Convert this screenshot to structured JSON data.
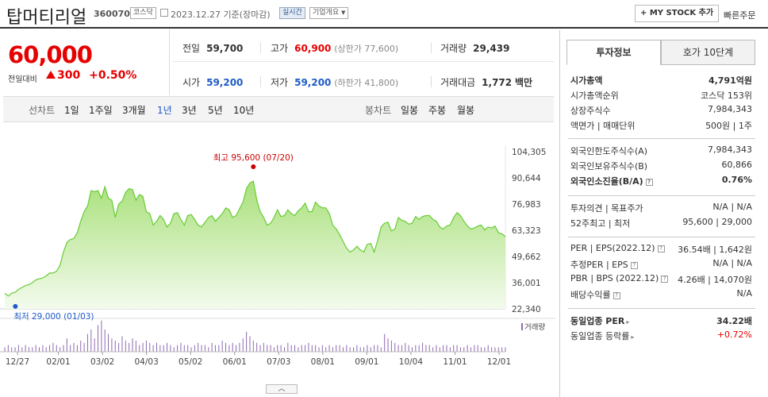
{
  "header": {
    "name": "탑머티리얼",
    "code": "360070",
    "market": "코스닥",
    "date": "2023.12.27 기준(장마감)",
    "realtime": "실시간",
    "company_info": "기업개요",
    "mystock": "+ MY STOCK 추가",
    "quick_order": "빠른주문"
  },
  "quote": {
    "price": "60,000",
    "change_label": "전일대비",
    "change": "300",
    "change_pct": "+0.50%",
    "prev_label": "전일",
    "prev": "59,700",
    "high_label": "고가",
    "high": "60,900",
    "upper": "(상한가 77,600)",
    "volume_label": "거래량",
    "volume": "29,439",
    "open_label": "시가",
    "open": "59,200",
    "low_label": "저가",
    "low": "59,200",
    "lower": "(하한가 41,800)",
    "amount_label": "거래대금",
    "amount": "1,772",
    "amount_unit": "백만"
  },
  "chart_tabs": {
    "line_label": "선차트",
    "line": [
      "1일",
      "1주일",
      "3개월",
      "1년",
      "3년",
      "5년",
      "10년"
    ],
    "active": "1년",
    "candle_label": "봉차트",
    "candle": [
      "일봉",
      "주봉",
      "월봉"
    ]
  },
  "chart_data": {
    "type": "area",
    "y_ticks": [
      "104,305",
      "90,644",
      "76,983",
      "63,323",
      "49,662",
      "36,001",
      "22,340"
    ],
    "ylim": [
      22340,
      104305
    ],
    "x_ticks": [
      "12/27",
      "02/01",
      "03/02",
      "04/03",
      "05/02",
      "06/01",
      "07/03",
      "08/01",
      "09/01",
      "10/04",
      "11/01",
      "12/01"
    ],
    "max_label": "최고 95,600 (07/20)",
    "min_label": "최저 29,000 (01/03)",
    "volume_label": "거래량",
    "values": [
      30500,
      29000,
      30500,
      31000,
      32500,
      33500,
      34500,
      35000,
      36000,
      37500,
      38000,
      38500,
      39500,
      41000,
      41000,
      42000,
      45000,
      52000,
      57000,
      58500,
      59000,
      62000,
      68000,
      73000,
      76000,
      84000,
      83500,
      84000,
      80000,
      86000,
      80000,
      79000,
      70000,
      77000,
      78500,
      83000,
      85000,
      84500,
      79000,
      82000,
      81000,
      73000,
      72000,
      66000,
      68000,
      71000,
      69000,
      65000,
      67000,
      72000,
      72500,
      69000,
      66000,
      71000,
      71500,
      69000,
      66000,
      65000,
      67500,
      70000,
      71000,
      68000,
      70000,
      72000,
      75000,
      74000,
      70000,
      71000,
      74500,
      78000,
      85000,
      88000,
      89000,
      79000,
      73000,
      70000,
      66000,
      67000,
      70000,
      74000,
      70500,
      71000,
      74000,
      72000,
      71000,
      73500,
      75000,
      77500,
      73000,
      73000,
      78000,
      76000,
      75000,
      75000,
      72000,
      66000,
      64000,
      61000,
      57500,
      54000,
      52000,
      53000,
      55000,
      53000,
      52000,
      56000,
      56500,
      52000,
      58000,
      65000,
      67000,
      67500,
      63000,
      64000,
      70000,
      68500,
      68000,
      66500,
      67000,
      70500,
      69000,
      70500,
      71000,
      71000,
      69000,
      68000,
      65000,
      64000,
      65500,
      66000,
      70000,
      72500,
      71000,
      68000,
      65500,
      64000,
      64500,
      65500,
      66000,
      63500,
      65000,
      64500,
      65500,
      62000,
      61500,
      60000
    ],
    "volumes": [
      2,
      3,
      2,
      2,
      3,
      2,
      3,
      2,
      2,
      3,
      2,
      3,
      2,
      3,
      4,
      3,
      2,
      3,
      6,
      3,
      4,
      3,
      5,
      4,
      8,
      10,
      6,
      12,
      14,
      10,
      8,
      6,
      5,
      4,
      7,
      5,
      4,
      6,
      5,
      3,
      4,
      5,
      4,
      3,
      4,
      3,
      3,
      4,
      3,
      2,
      3,
      4,
      3,
      3,
      2,
      3,
      4,
      3,
      3,
      2,
      4,
      3,
      3,
      5,
      4,
      3,
      4,
      3,
      4,
      6,
      9,
      7,
      5,
      4,
      3,
      4,
      3,
      3,
      2,
      3,
      3,
      2,
      4,
      3,
      3,
      2,
      3,
      3,
      4,
      3,
      3,
      2,
      3,
      2,
      3,
      2,
      3,
      3,
      2,
      3,
      2,
      2,
      3,
      2,
      2,
      3,
      2,
      3,
      3,
      2,
      8,
      6,
      5,
      4,
      3,
      3,
      4,
      3,
      2,
      3,
      3,
      4,
      3,
      3,
      2,
      3,
      2,
      3,
      3,
      2,
      3,
      3,
      2,
      2,
      3,
      2,
      3,
      3,
      2,
      2,
      3,
      2,
      2,
      2,
      2,
      2
    ],
    "colors": {
      "line": "#66cc33",
      "fill_top": "#a8e07a",
      "fill_bottom": "#f4fbee",
      "volume": "#8e6ab0",
      "max": "#cc0000",
      "min": "#1e5bc6"
    }
  },
  "panel": {
    "tabs": [
      "투자정보",
      "호가 10단계"
    ],
    "g1": [
      {
        "l": "시가총액",
        "v": "4,791억원",
        "bold": true
      },
      {
        "l": "시가총액순위",
        "v": "코스닥 153위"
      },
      {
        "l": "상장주식수",
        "v": "7,984,343"
      },
      {
        "l": "액면가 | 매매단위",
        "v": "500원 | 1주"
      }
    ],
    "g2": [
      {
        "l": "외국인한도주식수(A)",
        "v": "7,984,343"
      },
      {
        "l": "외국인보유주식수(B)",
        "v": "60,866"
      },
      {
        "l": "외국인소진율(B/A)",
        "v": "0.76%",
        "bold": true,
        "q": true
      }
    ],
    "g3": [
      {
        "l": "투자의견 | 목표주가",
        "v": "N/A | N/A"
      },
      {
        "l": "52주최고 | 최저",
        "v": "95,600 | 29,000"
      }
    ],
    "g4": [
      {
        "l": "PER | EPS(2022.12)",
        "v": "36.54배 | 1,642원",
        "q": true
      },
      {
        "l": "추정PER | EPS",
        "v": "N/A | N/A",
        "q": true
      },
      {
        "l": "PBR | BPS (2022.12)",
        "v": "4.26배 | 14,070원",
        "q": true
      },
      {
        "l": "배당수익률",
        "v": "N/A",
        "q": true
      }
    ],
    "g5": [
      {
        "l": "동일업종 PER",
        "v": "34.22배",
        "bold": true,
        "arrow": true
      },
      {
        "l": "동일업종 등락률",
        "v": "+0.72%",
        "red": true,
        "arrow": true
      }
    ]
  }
}
